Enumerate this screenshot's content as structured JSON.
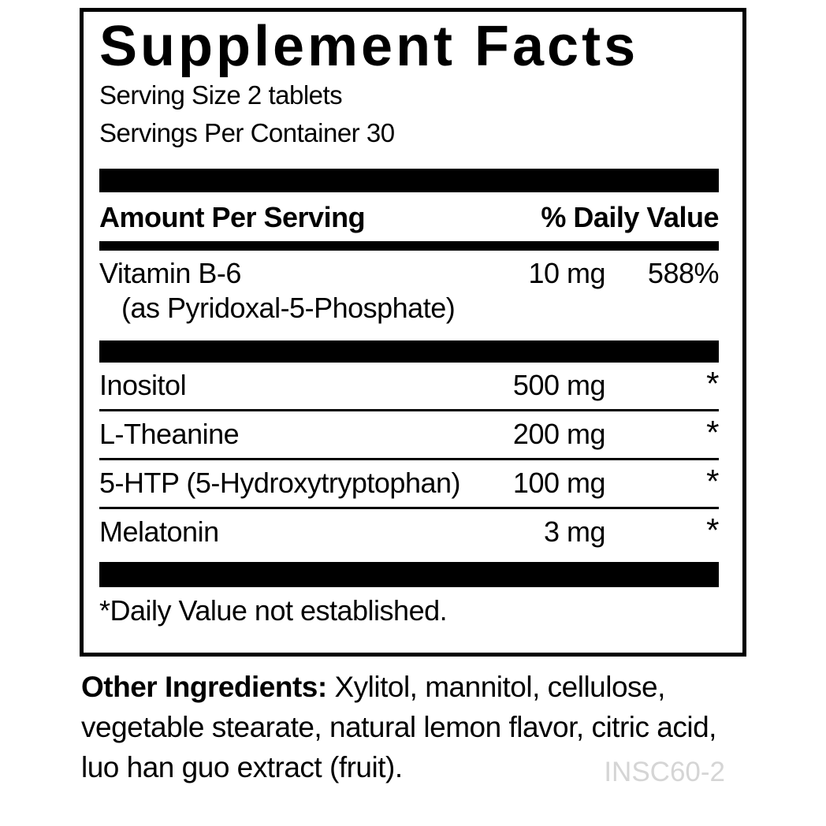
{
  "label": {
    "title": "Supplement Facts",
    "serving_size": "Serving Size 2 tablets",
    "servings_per_container": "Servings Per Container 30",
    "header": {
      "amount_label": "Amount Per Serving",
      "daily_value_label": "% Daily Value"
    },
    "rows": [
      {
        "name": "Vitamin B-6",
        "detail": "(as Pyridoxal-5-Phosphate)",
        "amount": "10 mg",
        "dv": "588%"
      },
      {
        "name": "Inositol",
        "amount": "500 mg",
        "dv": "*"
      },
      {
        "name": "L-Theanine",
        "amount": "200 mg",
        "dv": "*"
      },
      {
        "name": "5-HTP (5-Hydroxytryptophan)",
        "amount": "100 mg",
        "dv": "*"
      },
      {
        "name": "Melatonin",
        "amount": "3 mg",
        "dv": "*"
      }
    ],
    "footnote": "*Daily Value not established."
  },
  "other_ingredients": {
    "label": "Other Ingredients:",
    "lines": [
      "Xylitol, mannitol, cellulose,",
      "vegetable stearate, natural lemon flavor, citric acid,",
      "luo han guo extract (fruit)."
    ]
  },
  "product_code": "INSC60-2",
  "colors": {
    "text": "#000000",
    "muted_code": "#d5d5d5",
    "background": "#ffffff"
  }
}
